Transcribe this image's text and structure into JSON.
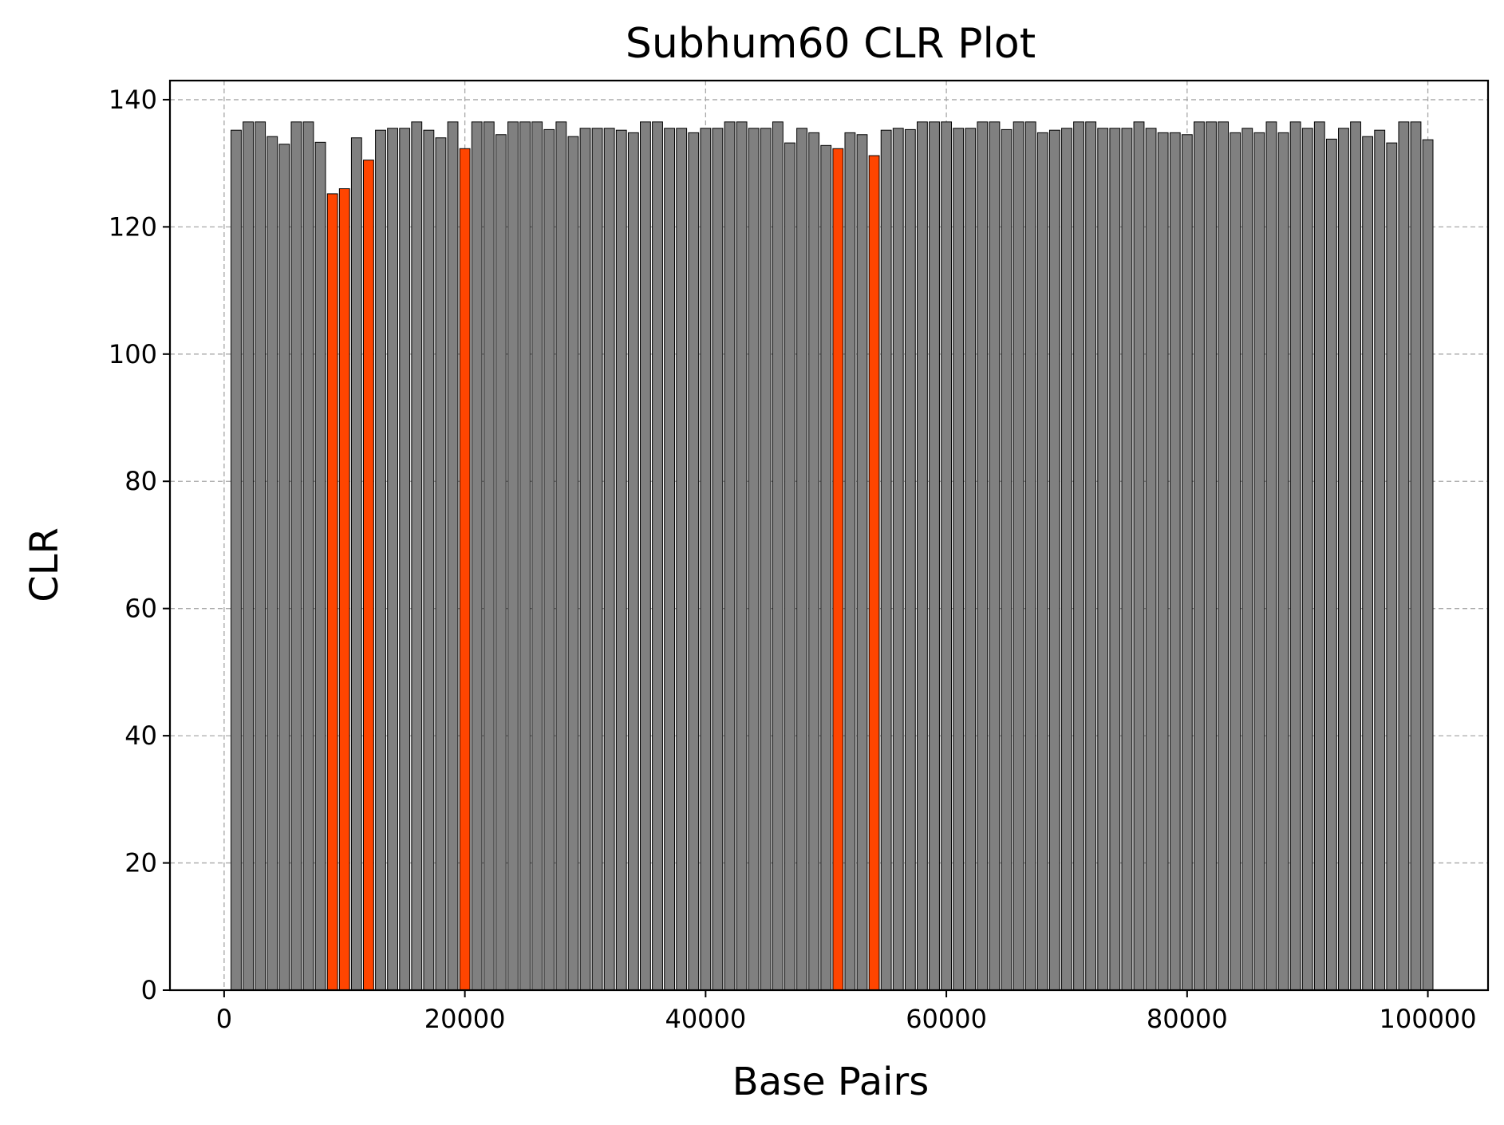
{
  "chart_data": {
    "type": "bar",
    "title": "Subhum60 CLR Plot",
    "xlabel": "Base Pairs",
    "ylabel": "CLR",
    "xlim": [
      -4500,
      105000
    ],
    "ylim": [
      0,
      143
    ],
    "xticks": [
      0,
      20000,
      40000,
      60000,
      80000,
      100000
    ],
    "yticks": [
      0,
      20,
      40,
      60,
      80,
      100,
      120,
      140
    ],
    "grid": true,
    "bar_width": 850,
    "colors": {
      "default": "#808080",
      "highlight": "#ff4500",
      "edge": "#000000"
    },
    "x": [
      1000,
      2000,
      3000,
      4000,
      5000,
      6000,
      7000,
      8000,
      9000,
      10000,
      11000,
      12000,
      13000,
      14000,
      15000,
      16000,
      17000,
      18000,
      19000,
      20000,
      21000,
      22000,
      23000,
      24000,
      25000,
      26000,
      27000,
      28000,
      29000,
      30000,
      31000,
      32000,
      33000,
      34000,
      35000,
      36000,
      37000,
      38000,
      39000,
      40000,
      41000,
      42000,
      43000,
      44000,
      45000,
      46000,
      47000,
      48000,
      49000,
      50000,
      51000,
      52000,
      53000,
      54000,
      55000,
      56000,
      57000,
      58000,
      59000,
      60000,
      61000,
      62000,
      63000,
      64000,
      65000,
      66000,
      67000,
      68000,
      69000,
      70000,
      71000,
      72000,
      73000,
      74000,
      75000,
      76000,
      77000,
      78000,
      79000,
      80000,
      81000,
      82000,
      83000,
      84000,
      85000,
      86000,
      87000,
      88000,
      89000,
      90000,
      91000,
      92000,
      93000,
      94000,
      95000,
      96000,
      97000,
      98000,
      99000,
      100000
    ],
    "values": [
      135.2,
      136.5,
      136.5,
      134.2,
      133,
      136.5,
      136.5,
      133.3,
      125.2,
      126,
      134,
      130.5,
      135.2,
      135.5,
      135.5,
      136.5,
      135.2,
      134,
      136.5,
      132.3,
      136.5,
      136.5,
      134.5,
      136.5,
      136.5,
      136.5,
      135.3,
      136.5,
      134.2,
      135.5,
      135.5,
      135.5,
      135.2,
      134.8,
      136.5,
      136.5,
      135.5,
      135.5,
      134.8,
      135.5,
      135.5,
      136.5,
      136.5,
      135.5,
      135.5,
      136.5,
      133.2,
      135.5,
      134.8,
      132.8,
      132.3,
      134.8,
      134.5,
      131.2,
      135.2,
      135.5,
      135.3,
      136.5,
      136.5,
      136.5,
      135.5,
      135.5,
      136.5,
      136.5,
      135.3,
      136.5,
      136.5,
      134.8,
      135.2,
      135.5,
      136.5,
      136.5,
      135.5,
      135.5,
      135.5,
      136.5,
      135.5,
      134.8,
      134.8,
      134.5,
      136.5,
      136.5,
      136.5,
      134.8,
      135.5,
      134.8,
      136.5,
      134.8,
      136.5,
      135.5,
      136.5,
      133.8,
      135.5,
      136.5,
      134.2,
      135.2,
      133.2,
      136.5,
      136.5,
      133.7
    ],
    "highlight_x": [
      9000,
      10000,
      12000,
      20000,
      51000,
      54000
    ]
  }
}
